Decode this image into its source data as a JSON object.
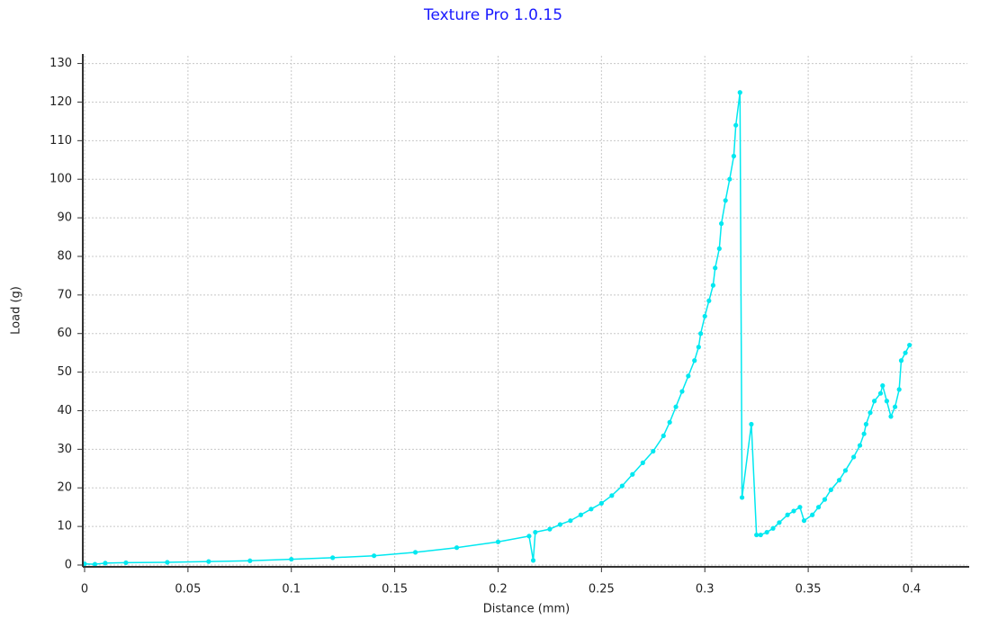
{
  "chart_data": {
    "type": "line",
    "title": "Texture Pro 1.0.15",
    "x_label": "Distance (mm)",
    "y_label": "Load (g)",
    "xlim": [
      0,
      0.427
    ],
    "ylim": [
      0,
      132
    ],
    "xticks": [
      0,
      0.05,
      0.1,
      0.15,
      0.2,
      0.25,
      0.3,
      0.35,
      0.4
    ],
    "yticks": [
      0,
      10,
      20,
      30,
      40,
      50,
      60,
      70,
      80,
      90,
      100,
      110,
      120,
      130
    ],
    "grid": true,
    "x": [
      0,
      0.005,
      0.01,
      0.02,
      0.04,
      0.06,
      0.08,
      0.1,
      0.12,
      0.14,
      0.16,
      0.18,
      0.2,
      0.215,
      0.217,
      0.218,
      0.225,
      0.23,
      0.235,
      0.24,
      0.245,
      0.25,
      0.255,
      0.26,
      0.265,
      0.27,
      0.275,
      0.28,
      0.283,
      0.286,
      0.289,
      0.292,
      0.295,
      0.297,
      0.298,
      0.3,
      0.302,
      0.304,
      0.305,
      0.307,
      0.308,
      0.31,
      0.312,
      0.314,
      0.315,
      0.317,
      0.318,
      0.3225,
      0.325,
      0.327,
      0.33,
      0.333,
      0.336,
      0.34,
      0.343,
      0.346,
      0.348,
      0.352,
      0.355,
      0.358,
      0.361,
      0.365,
      0.368,
      0.372,
      0.375,
      0.377,
      0.378,
      0.38,
      0.382,
      0.385,
      0.386,
      0.388,
      0.39,
      0.392,
      0.394,
      0.395,
      0.397,
      0.399
    ],
    "series": [
      {
        "name": "Load",
        "color": "#00e8f0",
        "values": [
          0.3,
          0.2,
          0.5,
          0.6,
          0.7,
          0.9,
          1.1,
          1.5,
          1.9,
          2.4,
          3.3,
          4.5,
          6.0,
          7.5,
          1.2,
          8.5,
          9.3,
          10.5,
          11.5,
          13,
          14.5,
          16,
          18,
          20.5,
          23.5,
          26.5,
          29.5,
          33.5,
          37,
          41,
          45,
          49,
          53,
          56.5,
          60,
          64.5,
          68.5,
          72.5,
          77,
          82,
          88.5,
          94.5,
          100,
          106,
          114,
          122.5,
          17.5,
          36.5,
          7.8,
          7.8,
          8.5,
          9.5,
          11,
          13,
          14,
          15,
          11.5,
          13,
          15,
          17,
          19.5,
          22,
          24.5,
          28,
          31,
          34,
          36.5,
          39.5,
          42.5,
          44.5,
          46.5,
          42.5,
          38.5,
          41,
          45.5,
          53,
          55,
          57
        ]
      }
    ]
  }
}
